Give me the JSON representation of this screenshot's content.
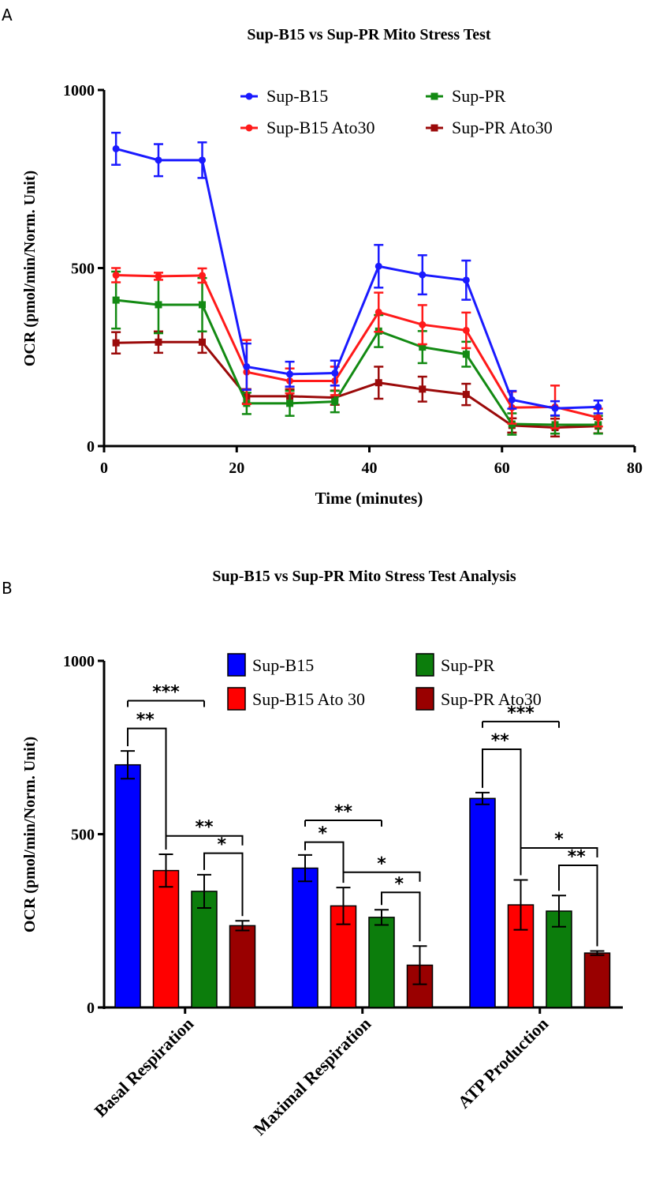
{
  "chart_data": [
    {
      "panel": "A",
      "type": "line",
      "title": "Sup-B15 vs Sup-PR Mito Stress Test",
      "xlabel": "Time (minutes)",
      "ylabel": "OCR (pmol/min/Norm. Unit)",
      "xlim": [
        0,
        80
      ],
      "ylim": [
        0,
        1000
      ],
      "xticks": [
        "0",
        "20",
        "40",
        "60",
        "80"
      ],
      "yticks": [
        "0",
        "500",
        "1000"
      ],
      "legend_position": "top-right",
      "x": [
        1.8,
        8.2,
        14.8,
        21.5,
        28.0,
        34.8,
        41.4,
        48.0,
        54.6,
        61.5,
        68.0,
        74.5
      ],
      "series": [
        {
          "name": "Sup-B15",
          "color": "#1a1aff",
          "marker": "circle",
          "values": [
            835,
            803,
            803,
            223,
            202,
            205,
            505,
            481,
            466,
            130,
            106,
            110
          ],
          "errors": [
            45,
            45,
            50,
            65,
            35,
            35,
            60,
            55,
            55,
            25,
            20,
            18
          ]
        },
        {
          "name": "Sup-PR",
          "color": "#138a13",
          "marker": "square",
          "values": [
            410,
            397,
            397,
            120,
            120,
            125,
            323,
            278,
            258,
            62,
            60,
            60
          ],
          "errors": [
            80,
            80,
            75,
            30,
            35,
            30,
            45,
            45,
            35,
            30,
            25,
            25
          ]
        },
        {
          "name": "Sup-B15 Ato30",
          "color": "#ff1a1a",
          "marker": "circle",
          "values": [
            480,
            477,
            479,
            208,
            183,
            183,
            376,
            341,
            325,
            108,
            110,
            80
          ],
          "errors": [
            20,
            10,
            20,
            90,
            35,
            40,
            55,
            55,
            50,
            45,
            60,
            25
          ]
        },
        {
          "name": "Sup-PR Ato30",
          "color": "#9b0a0a",
          "marker": "square",
          "values": [
            290,
            292,
            292,
            140,
            140,
            136,
            178,
            160,
            145,
            58,
            52,
            56
          ],
          "errors": [
            30,
            30,
            30,
            20,
            20,
            20,
            45,
            35,
            30,
            20,
            25,
            20
          ]
        }
      ]
    },
    {
      "panel": "B",
      "type": "bar",
      "title": "Sup-B15 vs Sup-PR Mito Stress Test Analysis",
      "ylabel": "OCR (pmol/min/Norm. Unit)",
      "ylim": [
        0,
        1000
      ],
      "yticks": [
        "0",
        "500",
        "1000"
      ],
      "legend_position": "top-right",
      "categories": [
        "Basal Respiration",
        "Maximal Respiration",
        "ATP Production"
      ],
      "series": [
        {
          "name": "Sup-B15",
          "color": "#0000ff",
          "values": [
            700,
            402,
            603
          ],
          "errors": [
            40,
            38,
            17
          ]
        },
        {
          "name": "Sup-B15 Ato 30",
          "color": "#ff0000",
          "values": [
            395,
            293,
            296
          ],
          "errors": [
            47,
            53,
            72
          ]
        },
        {
          "name": "Sup-PR",
          "color": "#0c7d0c",
          "values": [
            335,
            260,
            278
          ],
          "errors": [
            48,
            22,
            45
          ]
        },
        {
          "name": "Sup-PR Ato30",
          "color": "#990000",
          "values": [
            236,
            122,
            157
          ],
          "errors": [
            14,
            55,
            6
          ]
        }
      ],
      "legend_order": [
        0,
        2,
        1,
        3
      ],
      "annotations": [
        {
          "group": 0,
          "from": 0,
          "to": 2,
          "label": "***",
          "type": "flat",
          "y": 885
        },
        {
          "group": 0,
          "from": 0,
          "to": 1,
          "label": "**",
          "type": "bracket",
          "y": 805
        },
        {
          "group": 0,
          "from": 1,
          "to": 3,
          "label": "**",
          "type": "flat-left",
          "y": 495
        },
        {
          "group": 0,
          "from": 2,
          "to": 3,
          "label": "*",
          "type": "bracket",
          "y": 445
        },
        {
          "group": 1,
          "from": 0,
          "to": 2,
          "label": "**",
          "type": "flat",
          "y": 540
        },
        {
          "group": 1,
          "from": 0,
          "to": 1,
          "label": "*",
          "type": "bracket",
          "y": 477
        },
        {
          "group": 1,
          "from": 1,
          "to": 3,
          "label": "*",
          "type": "flat-left",
          "y": 390
        },
        {
          "group": 1,
          "from": 2,
          "to": 3,
          "label": "*",
          "type": "bracket",
          "y": 332
        },
        {
          "group": 2,
          "from": 0,
          "to": 2,
          "label": "***",
          "type": "flat",
          "y": 825
        },
        {
          "group": 2,
          "from": 0,
          "to": 1,
          "label": "**",
          "type": "bracket",
          "y": 745
        },
        {
          "group": 2,
          "from": 1,
          "to": 3,
          "label": "*",
          "type": "flat-left",
          "y": 460
        },
        {
          "group": 2,
          "from": 2,
          "to": 3,
          "label": "**",
          "type": "bracket",
          "y": 410
        }
      ]
    }
  ],
  "panel_labels": {
    "a": "A",
    "b": "B"
  }
}
